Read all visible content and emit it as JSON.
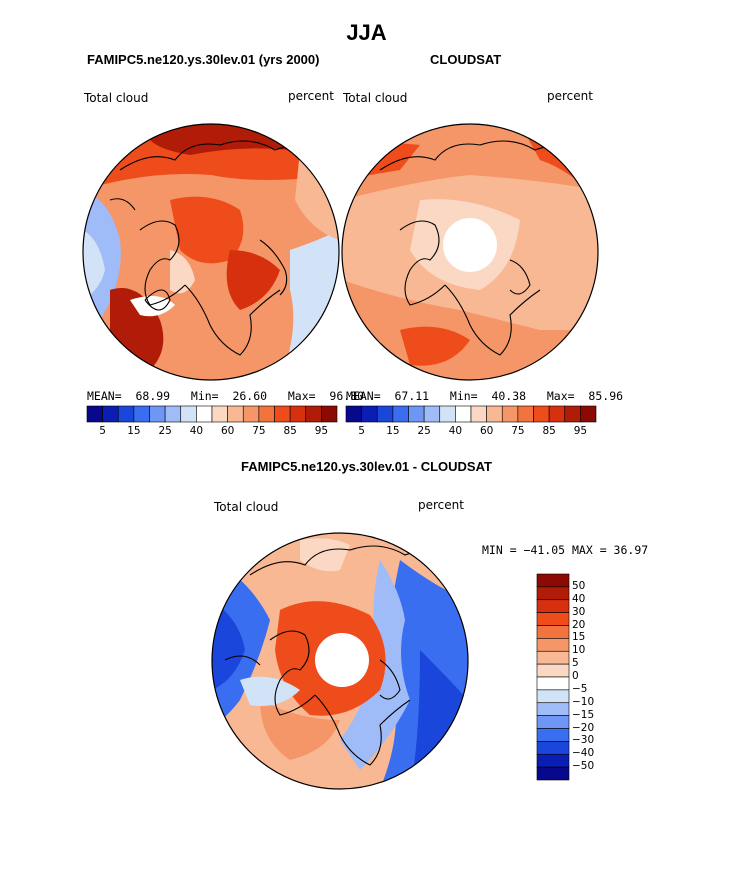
{
  "figure": {
    "title": "JJA",
    "units": "percent",
    "variable": "Total cloud"
  },
  "panels": {
    "model": {
      "title": "FAMIPC5.ne120.ys.30lev.01 (yrs 2000)",
      "left_label": "Total cloud",
      "right_label": "percent",
      "stats": {
        "mean_label": "MEAN=",
        "mean": "68.99",
        "min_label": "Min=",
        "min": "26.60",
        "max_label": "Max=",
        "max": "96.80"
      }
    },
    "obs": {
      "title": "CLOUDSAT",
      "left_label": "Total cloud",
      "right_label": "percent",
      "stats": {
        "mean_label": "MEAN=",
        "mean": "67.11",
        "min_label": "Min=",
        "min": "40.38",
        "max_label": "Max=",
        "max": "85.96"
      }
    },
    "diff": {
      "title": "FAMIPC5.ne120.ys.30lev.01 - CLOUDSAT",
      "left_label": "Total cloud",
      "right_label": "percent",
      "minmax_text": "MIN = −41.05 MAX =   36.97"
    }
  },
  "colorbars": {
    "abs_colors": [
      "#08088c",
      "#0a1eb4",
      "#1a46dc",
      "#3a6ef0",
      "#6e96f5",
      "#a0bcf8",
      "#d2e2f7",
      "#ffffff",
      "#fbd8c4",
      "#f8b894",
      "#f59668",
      "#f3733f",
      "#ef4c1c",
      "#d6300e",
      "#b01c08",
      "#8c0a04"
    ],
    "abs_tick_labels": [
      "5",
      "15",
      "25",
      "40",
      "60",
      "75",
      "85",
      "95"
    ],
    "diff_colors": [
      "#08088c",
      "#0a1eb4",
      "#1a46dc",
      "#3a6ef0",
      "#6e96f5",
      "#a0bcf8",
      "#d2e2f7",
      "#ffffff",
      "#fbd8c4",
      "#f8b894",
      "#f59668",
      "#f3733f",
      "#ef4c1c",
      "#d6300e",
      "#b01c08",
      "#8c0a04"
    ],
    "diff_tick_labels": [
      "50",
      "40",
      "30",
      "20",
      "15",
      "10",
      "5",
      "0",
      "−5",
      "−10",
      "−15",
      "−20",
      "−30",
      "−40",
      "−50"
    ]
  },
  "colors": {
    "coast": "#000000",
    "pole_mask": "#ffffff"
  }
}
